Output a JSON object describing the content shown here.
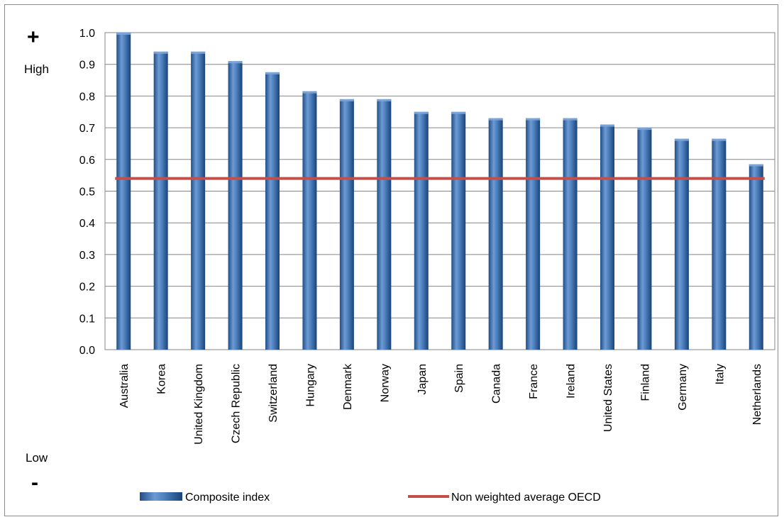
{
  "chart_data": {
    "type": "bar",
    "categories": [
      "Australia",
      "Korea",
      "United Kingdom",
      "Czech Republic",
      "Switzerland",
      "Hungary",
      "Denmark",
      "Norway",
      "Japan",
      "Spain",
      "Canada",
      "France",
      "Ireland",
      "United States",
      "Finland",
      "Germany",
      "Italy",
      "Netherlands"
    ],
    "series": [
      {
        "name": "Composite index",
        "type": "bar",
        "values": [
          1.0,
          0.94,
          0.94,
          0.91,
          0.875,
          0.815,
          0.79,
          0.79,
          0.75,
          0.75,
          0.73,
          0.73,
          0.73,
          0.71,
          0.7,
          0.665,
          0.665,
          0.585
        ]
      },
      {
        "name": "Non weighted average OECD",
        "type": "line",
        "value": 0.54
      }
    ],
    "ylim": [
      0.0,
      1.0
    ],
    "yticks": [
      "1.0",
      "0.9",
      "0.8",
      "0.7",
      "0.6",
      "0.5",
      "0.4",
      "0.3",
      "0.2",
      "0.1",
      "0.0"
    ],
    "grid": true,
    "legend": "bottom",
    "colors": {
      "bar": "#4a7ebb",
      "bar_dark": "#1f4e87",
      "bar_light": "#7ea6d9",
      "line": "#c0504d",
      "grid": "#868686"
    }
  },
  "annotations": {
    "top_symbol": "+",
    "top_label": "High",
    "bottom_label": "Low",
    "bottom_symbol": "-"
  }
}
